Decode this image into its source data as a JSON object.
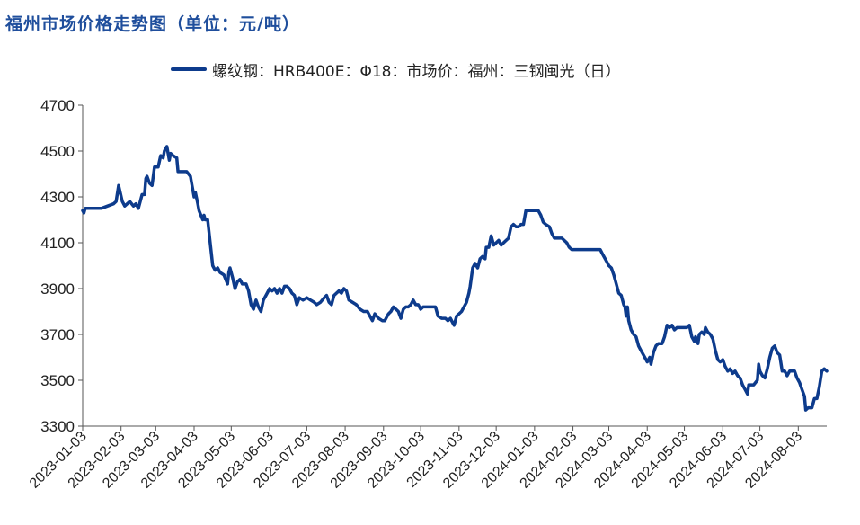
{
  "title": "福州市场价格走势图（单位：元/吨）",
  "chart_data": {
    "type": "line",
    "ylim": [
      3300,
      4700
    ],
    "yticks": [
      3300,
      3500,
      3700,
      3900,
      4100,
      4300,
      4500,
      4700
    ],
    "xlim": [
      "2023-01-03",
      "2024-08-26"
    ],
    "xticks": [
      "2023-01-03",
      "2023-02-03",
      "2023-03-03",
      "2023-04-03",
      "2023-05-03",
      "2023-06-03",
      "2023-07-03",
      "2023-08-03",
      "2023-09-03",
      "2023-10-03",
      "2023-11-03",
      "2023-12-03",
      "2024-01-03",
      "2024-02-03",
      "2024-03-03",
      "2024-04-03",
      "2024-05-03",
      "2024-06-03",
      "2024-07-03",
      "2024-08-03"
    ],
    "grid": false,
    "legend_position": "top",
    "series": [
      {
        "name": "螺纹钢：HRB400E：Φ18：市场价：福州：三钢闽光（日）",
        "color": "#0d3b8c",
        "points": [
          [
            "2023-01-03",
            4240
          ],
          [
            "2023-01-04",
            4230
          ],
          [
            "2023-01-05",
            4250
          ],
          [
            "2023-01-10",
            4250
          ],
          [
            "2023-01-18",
            4250
          ],
          [
            "2023-01-28",
            4270
          ],
          [
            "2023-01-30",
            4280
          ],
          [
            "2023-02-01",
            4350
          ],
          [
            "2023-02-04",
            4280
          ],
          [
            "2023-02-06",
            4260
          ],
          [
            "2023-02-08",
            4270
          ],
          [
            "2023-02-10",
            4280
          ],
          [
            "2023-02-13",
            4260
          ],
          [
            "2023-02-15",
            4270
          ],
          [
            "2023-02-17",
            4250
          ],
          [
            "2023-02-20",
            4310
          ],
          [
            "2023-02-22",
            4310
          ],
          [
            "2023-02-23",
            4380
          ],
          [
            "2023-02-24",
            4390
          ],
          [
            "2023-02-26",
            4360
          ],
          [
            "2023-02-28",
            4350
          ],
          [
            "2023-03-02",
            4430
          ],
          [
            "2023-03-05",
            4430
          ],
          [
            "2023-03-07",
            4480
          ],
          [
            "2023-03-09",
            4470
          ],
          [
            "2023-03-10",
            4500
          ],
          [
            "2023-03-12",
            4520
          ],
          [
            "2023-03-14",
            4460
          ],
          [
            "2023-03-15",
            4490
          ],
          [
            "2023-03-17",
            4480
          ],
          [
            "2023-03-20",
            4470
          ],
          [
            "2023-03-21",
            4410
          ],
          [
            "2023-03-28",
            4410
          ],
          [
            "2023-03-31",
            4390
          ],
          [
            "2023-04-01",
            4360
          ],
          [
            "2023-04-03",
            4300
          ],
          [
            "2023-04-04",
            4320
          ],
          [
            "2023-04-06",
            4270
          ],
          [
            "2023-04-07",
            4240
          ],
          [
            "2023-04-10",
            4200
          ],
          [
            "2023-04-11",
            4220
          ],
          [
            "2023-04-12",
            4200
          ],
          [
            "2023-04-14",
            4200
          ],
          [
            "2023-04-15",
            4150
          ],
          [
            "2023-04-18",
            4000
          ],
          [
            "2023-04-20",
            3980
          ],
          [
            "2023-04-22",
            3990
          ],
          [
            "2023-04-24",
            3970
          ],
          [
            "2023-04-27",
            3960
          ],
          [
            "2023-04-30",
            3920
          ],
          [
            "2023-05-01",
            3970
          ],
          [
            "2023-05-02",
            3990
          ],
          [
            "2023-05-04",
            3950
          ],
          [
            "2023-05-06",
            3900
          ],
          [
            "2023-05-08",
            3930
          ],
          [
            "2023-05-10",
            3940
          ],
          [
            "2023-05-12",
            3920
          ],
          [
            "2023-05-15",
            3920
          ],
          [
            "2023-05-17",
            3890
          ],
          [
            "2023-05-19",
            3830
          ],
          [
            "2023-05-21",
            3810
          ],
          [
            "2023-05-23",
            3850
          ],
          [
            "2023-05-25",
            3820
          ],
          [
            "2023-05-27",
            3800
          ],
          [
            "2023-05-29",
            3850
          ],
          [
            "2023-06-01",
            3880
          ],
          [
            "2023-06-03",
            3900
          ],
          [
            "2023-06-05",
            3890
          ],
          [
            "2023-06-07",
            3900
          ],
          [
            "2023-06-09",
            3880
          ],
          [
            "2023-06-11",
            3900
          ],
          [
            "2023-06-13",
            3880
          ],
          [
            "2023-06-15",
            3910
          ],
          [
            "2023-06-17",
            3910
          ],
          [
            "2023-06-19",
            3900
          ],
          [
            "2023-06-21",
            3880
          ],
          [
            "2023-06-23",
            3870
          ],
          [
            "2023-06-25",
            3830
          ],
          [
            "2023-06-27",
            3860
          ],
          [
            "2023-06-30",
            3850
          ],
          [
            "2023-07-03",
            3860
          ],
          [
            "2023-07-06",
            3850
          ],
          [
            "2023-07-09",
            3840
          ],
          [
            "2023-07-11",
            3830
          ],
          [
            "2023-07-14",
            3840
          ],
          [
            "2023-07-17",
            3860
          ],
          [
            "2023-07-19",
            3870
          ],
          [
            "2023-07-21",
            3840
          ],
          [
            "2023-07-23",
            3830
          ],
          [
            "2023-07-25",
            3870
          ],
          [
            "2023-07-27",
            3880
          ],
          [
            "2023-07-29",
            3890
          ],
          [
            "2023-07-31",
            3880
          ],
          [
            "2023-08-02",
            3900
          ],
          [
            "2023-08-04",
            3890
          ],
          [
            "2023-08-06",
            3850
          ],
          [
            "2023-08-09",
            3840
          ],
          [
            "2023-08-12",
            3830
          ],
          [
            "2023-08-15",
            3810
          ],
          [
            "2023-08-18",
            3800
          ],
          [
            "2023-08-21",
            3800
          ],
          [
            "2023-08-23",
            3780
          ],
          [
            "2023-08-25",
            3760
          ],
          [
            "2023-08-27",
            3790
          ],
          [
            "2023-08-30",
            3770
          ],
          [
            "2023-09-02",
            3760
          ],
          [
            "2023-09-04",
            3760
          ],
          [
            "2023-09-07",
            3790
          ],
          [
            "2023-09-09",
            3800
          ],
          [
            "2023-09-11",
            3820
          ],
          [
            "2023-09-13",
            3810
          ],
          [
            "2023-09-15",
            3800
          ],
          [
            "2023-09-17",
            3770
          ],
          [
            "2023-09-19",
            3810
          ],
          [
            "2023-09-21",
            3820
          ],
          [
            "2023-09-23",
            3820
          ],
          [
            "2023-09-25",
            3830
          ],
          [
            "2023-09-27",
            3850
          ],
          [
            "2023-09-29",
            3830
          ],
          [
            "2023-10-01",
            3830
          ],
          [
            "2023-10-03",
            3810
          ],
          [
            "2023-10-05",
            3820
          ],
          [
            "2023-10-08",
            3820
          ],
          [
            "2023-10-12",
            3820
          ],
          [
            "2023-10-15",
            3820
          ],
          [
            "2023-10-17",
            3780
          ],
          [
            "2023-10-20",
            3770
          ],
          [
            "2023-10-23",
            3770
          ],
          [
            "2023-10-25",
            3760
          ],
          [
            "2023-10-27",
            3770
          ],
          [
            "2023-10-29",
            3750
          ],
          [
            "2023-10-30",
            3740
          ],
          [
            "2023-11-01",
            3780
          ],
          [
            "2023-11-03",
            3790
          ],
          [
            "2023-11-05",
            3800
          ],
          [
            "2023-11-07",
            3820
          ],
          [
            "2023-11-09",
            3840
          ],
          [
            "2023-11-11",
            3880
          ],
          [
            "2023-11-12",
            3910
          ],
          [
            "2023-11-14",
            3990
          ],
          [
            "2023-11-16",
            4010
          ],
          [
            "2023-11-18",
            3990
          ],
          [
            "2023-11-20",
            4030
          ],
          [
            "2023-11-22",
            4040
          ],
          [
            "2023-11-24",
            4030
          ],
          [
            "2023-11-25",
            4080
          ],
          [
            "2023-11-27",
            4080
          ],
          [
            "2023-11-29",
            4130
          ],
          [
            "2023-12-01",
            4090
          ],
          [
            "2023-12-03",
            4100
          ],
          [
            "2023-12-05",
            4110
          ],
          [
            "2023-12-07",
            4090
          ],
          [
            "2023-12-09",
            4100
          ],
          [
            "2023-12-11",
            4110
          ],
          [
            "2023-12-13",
            4120
          ],
          [
            "2023-12-15",
            4170
          ],
          [
            "2023-12-17",
            4180
          ],
          [
            "2023-12-19",
            4170
          ],
          [
            "2023-12-21",
            4170
          ],
          [
            "2023-12-23",
            4180
          ],
          [
            "2023-12-25",
            4180
          ],
          [
            "2023-12-27",
            4240
          ],
          [
            "2023-12-30",
            4240
          ],
          [
            "2024-01-04",
            4240
          ],
          [
            "2024-01-06",
            4240
          ],
          [
            "2024-01-08",
            4220
          ],
          [
            "2024-01-10",
            4190
          ],
          [
            "2024-01-12",
            4180
          ],
          [
            "2024-01-15",
            4170
          ],
          [
            "2024-01-17",
            4140
          ],
          [
            "2024-01-19",
            4120
          ],
          [
            "2024-01-22",
            4120
          ],
          [
            "2024-01-25",
            4120
          ],
          [
            "2024-01-27",
            4110
          ],
          [
            "2024-01-29",
            4100
          ],
          [
            "2024-01-31",
            4080
          ],
          [
            "2024-02-02",
            4070
          ],
          [
            "2024-02-09",
            4070
          ],
          [
            "2024-02-19",
            4070
          ],
          [
            "2024-02-25",
            4070
          ],
          [
            "2024-02-27",
            4050
          ],
          [
            "2024-03-01",
            4020
          ],
          [
            "2024-03-03",
            4000
          ],
          [
            "2024-03-05",
            3990
          ],
          [
            "2024-03-07",
            3960
          ],
          [
            "2024-03-09",
            3920
          ],
          [
            "2024-03-11",
            3880
          ],
          [
            "2024-03-13",
            3870
          ],
          [
            "2024-03-15",
            3830
          ],
          [
            "2024-03-16",
            3820
          ],
          [
            "2024-03-17",
            3780
          ],
          [
            "2024-03-18",
            3820
          ],
          [
            "2024-03-19",
            3760
          ],
          [
            "2024-03-21",
            3720
          ],
          [
            "2024-03-23",
            3700
          ],
          [
            "2024-03-25",
            3690
          ],
          [
            "2024-03-27",
            3650
          ],
          [
            "2024-03-29",
            3630
          ],
          [
            "2024-04-01",
            3600
          ],
          [
            "2024-04-03",
            3580
          ],
          [
            "2024-04-05",
            3600
          ],
          [
            "2024-04-06",
            3570
          ],
          [
            "2024-04-08",
            3620
          ],
          [
            "2024-04-10",
            3650
          ],
          [
            "2024-04-12",
            3660
          ],
          [
            "2024-04-15",
            3660
          ],
          [
            "2024-04-17",
            3690
          ],
          [
            "2024-04-19",
            3740
          ],
          [
            "2024-04-21",
            3730
          ],
          [
            "2024-04-23",
            3740
          ],
          [
            "2024-04-25",
            3720
          ],
          [
            "2024-04-27",
            3730
          ],
          [
            "2024-04-30",
            3730
          ],
          [
            "2024-05-03",
            3730
          ],
          [
            "2024-05-05",
            3730
          ],
          [
            "2024-05-07",
            3740
          ],
          [
            "2024-05-09",
            3690
          ],
          [
            "2024-05-11",
            3670
          ],
          [
            "2024-05-12",
            3690
          ],
          [
            "2024-05-14",
            3660
          ],
          [
            "2024-05-15",
            3700
          ],
          [
            "2024-05-17",
            3710
          ],
          [
            "2024-05-19",
            3700
          ],
          [
            "2024-05-20",
            3730
          ],
          [
            "2024-05-22",
            3710
          ],
          [
            "2024-05-24",
            3700
          ],
          [
            "2024-05-26",
            3680
          ],
          [
            "2024-05-28",
            3630
          ],
          [
            "2024-05-30",
            3590
          ],
          [
            "2024-06-01",
            3580
          ],
          [
            "2024-06-03",
            3590
          ],
          [
            "2024-06-05",
            3560
          ],
          [
            "2024-06-07",
            3540
          ],
          [
            "2024-06-09",
            3550
          ],
          [
            "2024-06-11",
            3530
          ],
          [
            "2024-06-13",
            3540
          ],
          [
            "2024-06-15",
            3520
          ],
          [
            "2024-06-17",
            3510
          ],
          [
            "2024-06-19",
            3480
          ],
          [
            "2024-06-21",
            3460
          ],
          [
            "2024-06-23",
            3440
          ],
          [
            "2024-06-24",
            3480
          ],
          [
            "2024-06-26",
            3480
          ],
          [
            "2024-06-28",
            3480
          ],
          [
            "2024-07-01",
            3500
          ],
          [
            "2024-07-02",
            3570
          ],
          [
            "2024-07-03",
            3540
          ],
          [
            "2024-07-05",
            3520
          ],
          [
            "2024-07-07",
            3510
          ],
          [
            "2024-07-09",
            3550
          ],
          [
            "2024-07-11",
            3600
          ],
          [
            "2024-07-13",
            3640
          ],
          [
            "2024-07-15",
            3650
          ],
          [
            "2024-07-17",
            3620
          ],
          [
            "2024-07-19",
            3610
          ],
          [
            "2024-07-21",
            3540
          ],
          [
            "2024-07-23",
            3540
          ],
          [
            "2024-07-25",
            3520
          ],
          [
            "2024-07-27",
            3540
          ],
          [
            "2024-07-29",
            3540
          ],
          [
            "2024-07-31",
            3540
          ],
          [
            "2024-08-02",
            3510
          ],
          [
            "2024-08-04",
            3490
          ],
          [
            "2024-08-06",
            3460
          ],
          [
            "2024-08-08",
            3430
          ],
          [
            "2024-08-09",
            3370
          ],
          [
            "2024-08-11",
            3380
          ],
          [
            "2024-08-14",
            3380
          ],
          [
            "2024-08-16",
            3420
          ],
          [
            "2024-08-18",
            3420
          ],
          [
            "2024-08-20",
            3470
          ],
          [
            "2024-08-22",
            3540
          ],
          [
            "2024-08-24",
            3550
          ],
          [
            "2024-08-26",
            3540
          ]
        ]
      }
    ]
  }
}
